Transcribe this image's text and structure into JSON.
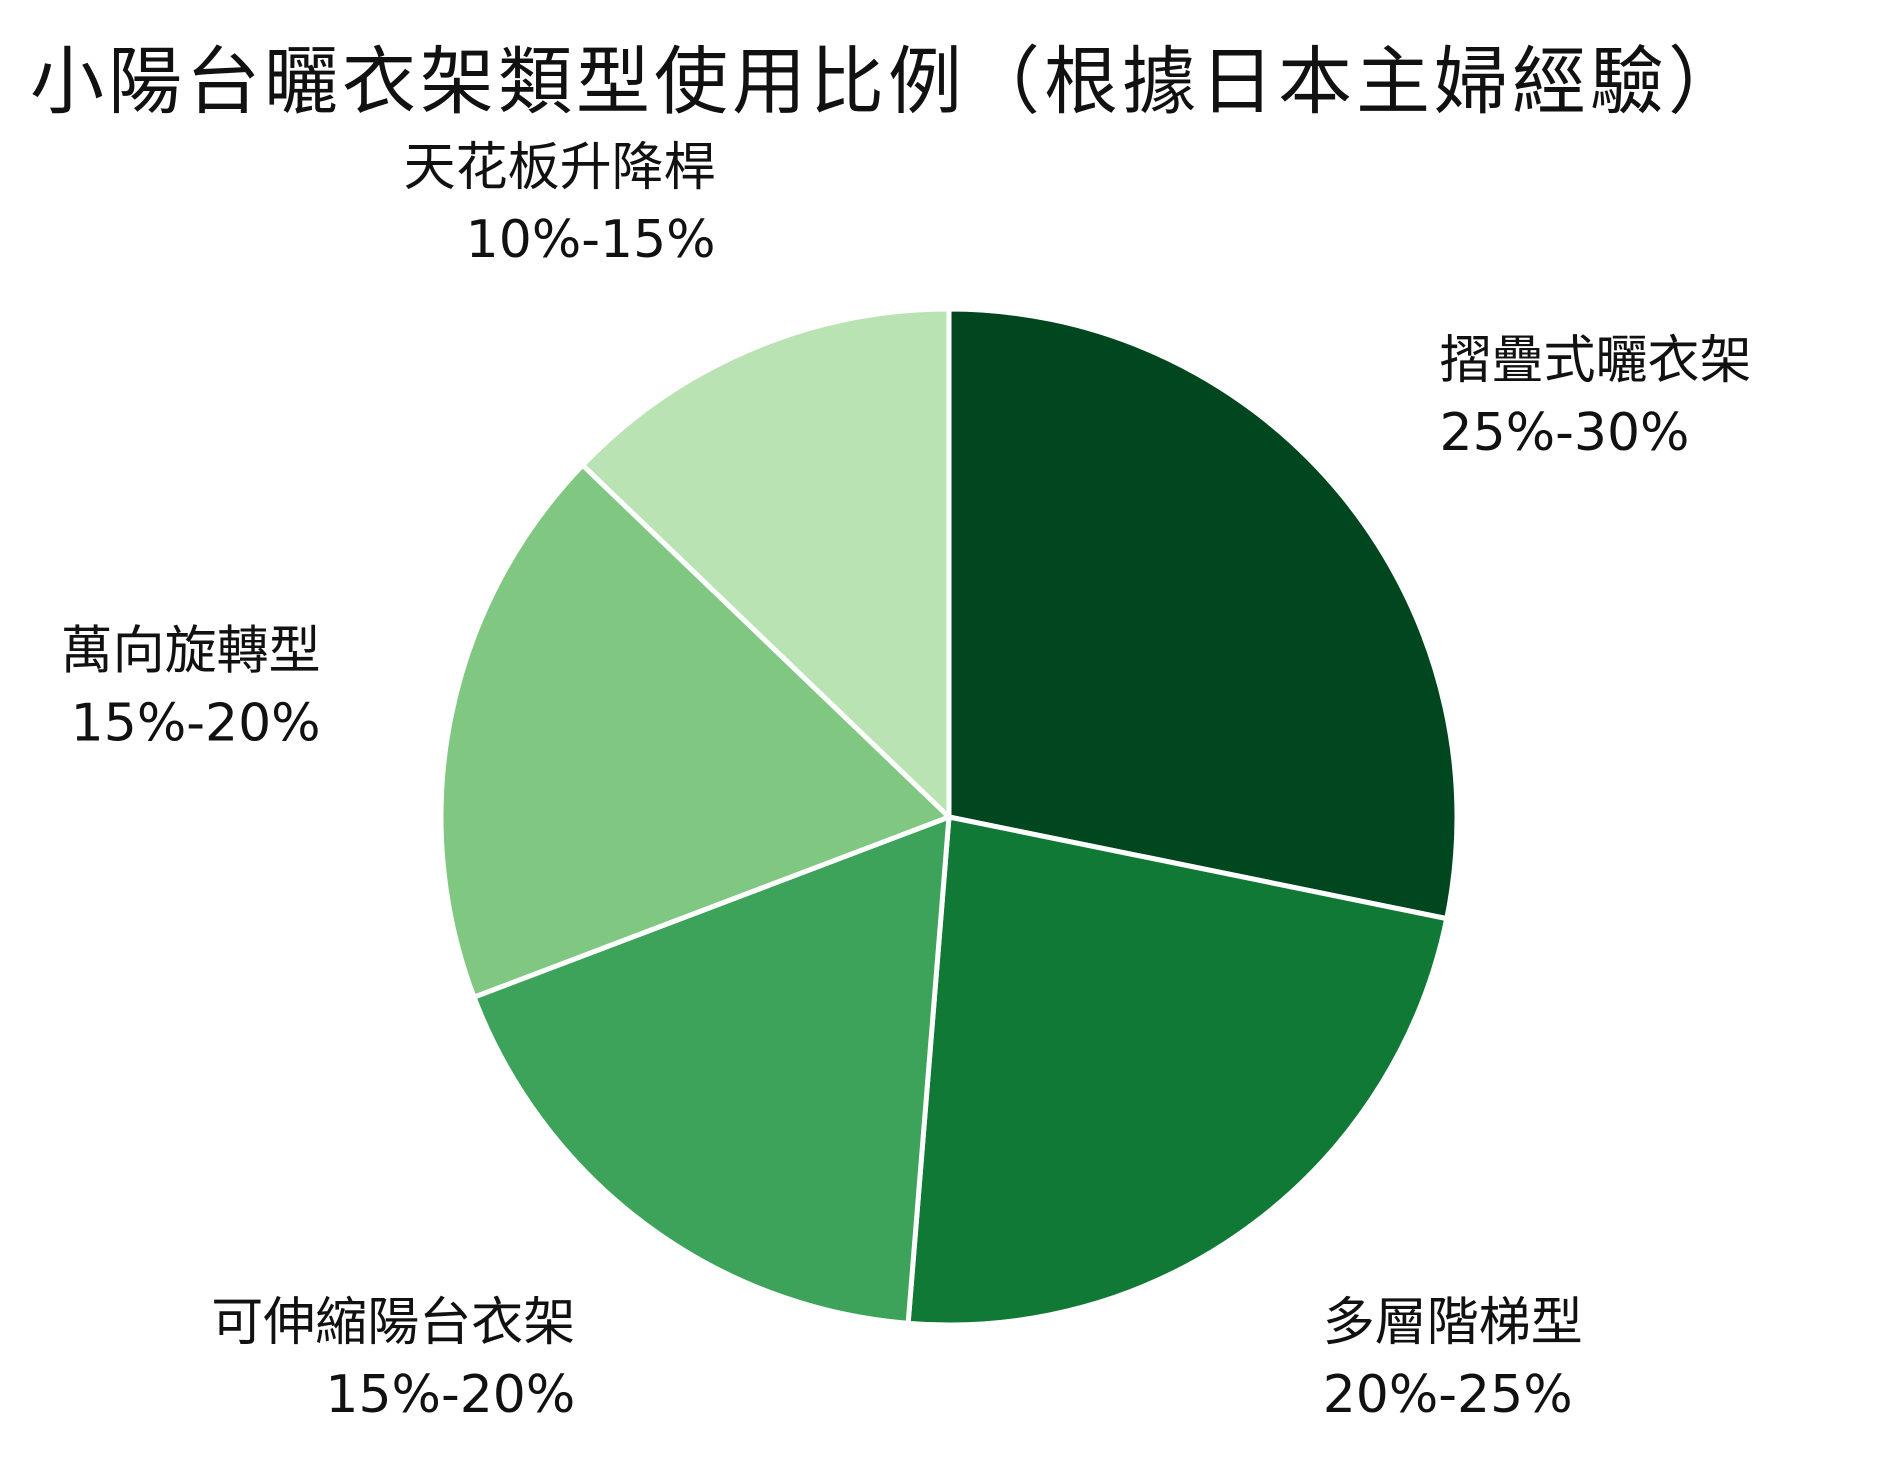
{
  "chart_data": {
    "type": "pie",
    "title": "小陽台曬衣架類型使用比例（根據日本主婦經驗）",
    "start_angle_deg": 0,
    "direction": "clockwise",
    "slices": [
      {
        "label": "摺疊式曬衣架",
        "value_text": "25%-30%",
        "value": 27.5,
        "color": "#00471f"
      },
      {
        "label": "多層階梯型",
        "value_text": "20%-25%",
        "value": 22.5,
        "color": "#107936"
      },
      {
        "label": "可伸縮陽台衣架",
        "value_text": "15%-20%",
        "value": 17.5,
        "color": "#3ea35a"
      },
      {
        "label": "萬向旋轉型",
        "value_text": "15%-20%",
        "value": 17.5,
        "color": "#80c781"
      },
      {
        "label": "天花板升降桿",
        "value_text": "10%-15%",
        "value": 12.5,
        "color": "#b9e3b2"
      }
    ],
    "legend": "none"
  }
}
